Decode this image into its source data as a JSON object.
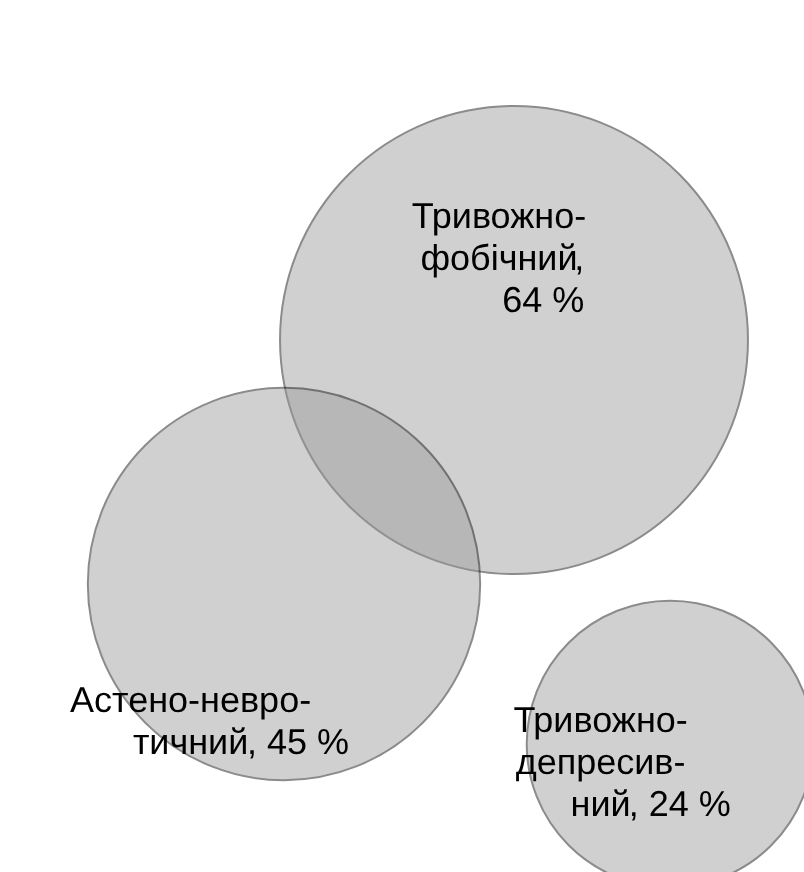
{
  "chart_data": {
    "type": "other",
    "categories": [
      "Тривожно-\nфобічний",
      "Астено-невро-\nтичний",
      "Тривожно-\nдепресив-\nний"
    ],
    "values": [
      64,
      45,
      24
    ],
    "value_labels": [
      ",\n64 %",
      ", 45 %",
      ", 24 %"
    ],
    "colors": [
      "#999999",
      "#999999",
      "#999999"
    ]
  }
}
